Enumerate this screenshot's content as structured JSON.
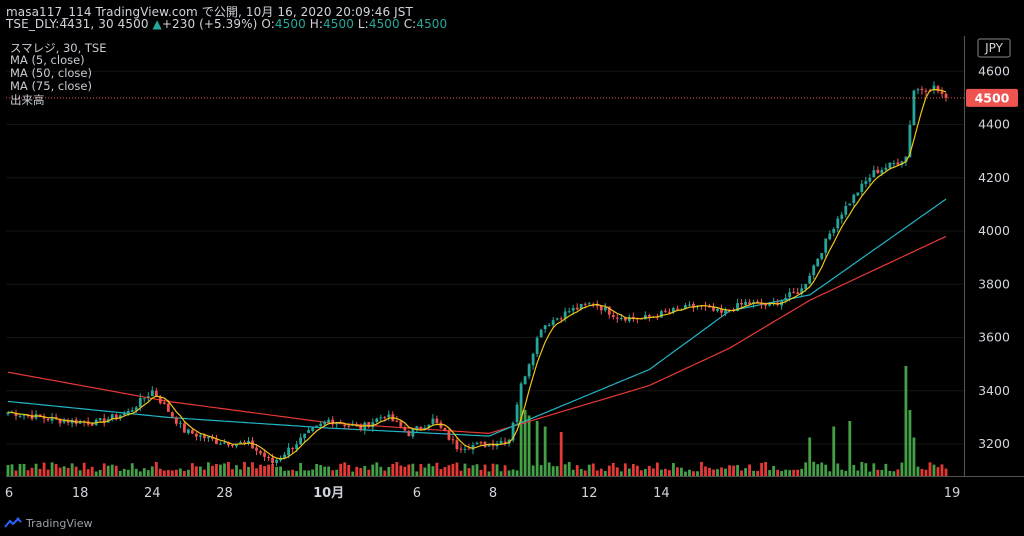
{
  "header": {
    "line1": "masa117_114 TradingView.com で公開, 10月 16, 2020 20:09:46 JST",
    "symbol": "TSE_DLY:4431, 30",
    "last": "4500",
    "change_arrow": "▲",
    "change": "+230 (+5.39%)",
    "o_label": "O:",
    "o_value": "4500",
    "h_label": "H:",
    "h_value": "4500",
    "l_label": "L:",
    "l_value": "4500",
    "c_label": "C:",
    "c_value": "4500"
  },
  "legend": {
    "symbol": "スマレジ, 30, TSE",
    "ma5": "MA (5, close)",
    "ma50": "MA (50, close)",
    "ma75": "MA (75, close)",
    "volume": "出来高"
  },
  "currency": "JPY",
  "price_label": "4500",
  "footer": {
    "brand": "TradingView"
  },
  "colors": {
    "up": "#26a69a",
    "down": "#ef5350",
    "ma5": "#f0c419",
    "ma50": "#22b5c5",
    "ma75": "#e53935",
    "price_line": "#ef5350",
    "volume_up": "#43a047",
    "volume_down": "#e53935"
  },
  "chart_data": {
    "type": "candlestick",
    "interval": "30 minutes",
    "x_tick_labels": [
      "6",
      "18",
      "24",
      "28",
      "10月",
      "6",
      "8",
      "12",
      "14",
      "19"
    ],
    "y_ticks": [
      3200,
      3400,
      3600,
      3800,
      4000,
      4200,
      4400,
      4600
    ],
    "ylim": [
      3080,
      4680
    ],
    "last_price": 4500,
    "keypoints": [
      {
        "bar": 0,
        "close": 3320
      },
      {
        "bar": 12,
        "close": 3290
      },
      {
        "bar": 22,
        "close": 3280
      },
      {
        "bar": 30,
        "close": 3320
      },
      {
        "bar": 36,
        "close": 3400
      },
      {
        "bar": 44,
        "close": 3250
      },
      {
        "bar": 52,
        "close": 3210
      },
      {
        "bar": 60,
        "close": 3200
      },
      {
        "bar": 66,
        "close": 3130
      },
      {
        "bar": 74,
        "close": 3230
      },
      {
        "bar": 80,
        "close": 3290
      },
      {
        "bar": 88,
        "close": 3260
      },
      {
        "bar": 94,
        "close": 3310
      },
      {
        "bar": 100,
        "close": 3240
      },
      {
        "bar": 106,
        "close": 3290
      },
      {
        "bar": 112,
        "close": 3190
      },
      {
        "bar": 120,
        "close": 3200
      },
      {
        "bar": 125,
        "close": 3220
      },
      {
        "bar": 128,
        "close": 3420
      },
      {
        "bar": 133,
        "close": 3640
      },
      {
        "bar": 140,
        "close": 3700
      },
      {
        "bar": 146,
        "close": 3730
      },
      {
        "bar": 152,
        "close": 3680
      },
      {
        "bar": 158,
        "close": 3670
      },
      {
        "bar": 166,
        "close": 3700
      },
      {
        "bar": 172,
        "close": 3720
      },
      {
        "bar": 178,
        "close": 3690
      },
      {
        "bar": 184,
        "close": 3730
      },
      {
        "bar": 190,
        "close": 3720
      },
      {
        "bar": 198,
        "close": 3780
      },
      {
        "bar": 202,
        "close": 3900
      },
      {
        "bar": 207,
        "close": 4050
      },
      {
        "bar": 212,
        "close": 4150
      },
      {
        "bar": 216,
        "close": 4220
      },
      {
        "bar": 222,
        "close": 4260
      },
      {
        "bar": 224,
        "close": 4280
      },
      {
        "bar": 226,
        "close": 4530
      },
      {
        "bar": 231,
        "close": 4540
      },
      {
        "bar": 234,
        "close": 4500
      }
    ],
    "volume_spikes": [
      {
        "bar": 128,
        "level": 0.7
      },
      {
        "bar": 129,
        "level": 0.6
      },
      {
        "bar": 130,
        "level": 0.55
      },
      {
        "bar": 132,
        "level": 0.5
      },
      {
        "bar": 134,
        "level": 0.45
      },
      {
        "bar": 138,
        "level": 0.4
      },
      {
        "bar": 200,
        "level": 0.35
      },
      {
        "bar": 206,
        "level": 0.45
      },
      {
        "bar": 210,
        "level": 0.5
      },
      {
        "bar": 224,
        "level": 1.0
      },
      {
        "bar": 225,
        "level": 0.6
      },
      {
        "bar": 226,
        "level": 0.35
      }
    ],
    "ma5": "follows price closely",
    "ma50": [
      {
        "bar": 0,
        "value": 3360
      },
      {
        "bar": 40,
        "value": 3300
      },
      {
        "bar": 80,
        "value": 3260
      },
      {
        "bar": 120,
        "value": 3230
      },
      {
        "bar": 160,
        "value": 3480
      },
      {
        "bar": 180,
        "value": 3700
      },
      {
        "bar": 200,
        "value": 3760
      },
      {
        "bar": 234,
        "value": 4120
      }
    ],
    "ma75": [
      {
        "bar": 0,
        "value": 3470
      },
      {
        "bar": 40,
        "value": 3360
      },
      {
        "bar": 80,
        "value": 3280
      },
      {
        "bar": 120,
        "value": 3240
      },
      {
        "bar": 160,
        "value": 3420
      },
      {
        "bar": 180,
        "value": 3560
      },
      {
        "bar": 200,
        "value": 3740
      },
      {
        "bar": 234,
        "value": 3980
      }
    ]
  }
}
